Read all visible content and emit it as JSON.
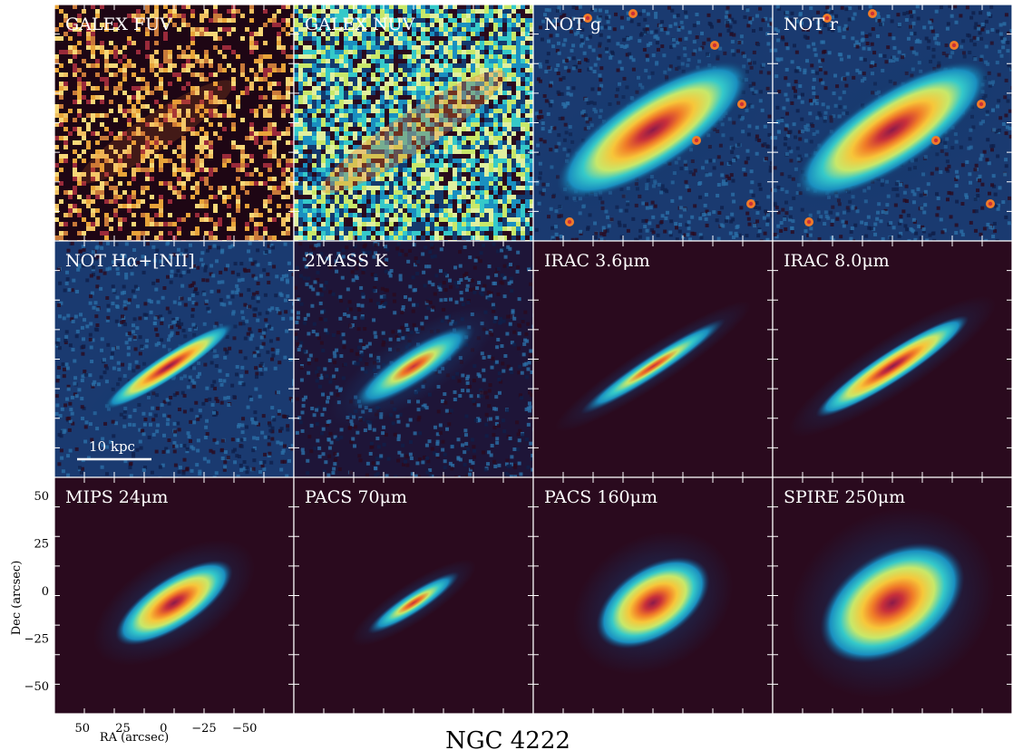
{
  "figure": {
    "title": "NGC 4222",
    "colors": {
      "background": "#2a0a1e",
      "colormap": [
        "#2a0a1e",
        "#143a6e",
        "#1a8fc0",
        "#35c9c9",
        "#c8e86a",
        "#f7c63a",
        "#f07b28",
        "#c9303a",
        "#8c1a4a"
      ]
    },
    "scale_bar": {
      "label": "10 kpc"
    },
    "axes": {
      "xlabel": "RA (arcsec)",
      "ylabel": "Dec (arcsec)",
      "x_ticks": [
        "50",
        "25",
        "0",
        "−25",
        "−50"
      ],
      "y_ticks": [
        "50",
        "25",
        "0",
        "−25",
        "−50"
      ]
    },
    "panels": [
      {
        "label": "GALEX FUV",
        "kind": "noise-sparse",
        "intensity": 0.25
      },
      {
        "label": "GALEX NUV",
        "kind": "noise-dense",
        "intensity": 0.5
      },
      {
        "label": "NOT g",
        "kind": "optical",
        "intensity": 0.9
      },
      {
        "label": "NOT r",
        "kind": "optical",
        "intensity": 0.95
      },
      {
        "label": "NOT Hα+[NII]",
        "kind": "halpha",
        "intensity": 0.8
      },
      {
        "label": "2MASS K",
        "kind": "nir-noisy",
        "intensity": 0.6
      },
      {
        "label": "IRAC 3.6μm",
        "kind": "thin",
        "intensity": 0.8
      },
      {
        "label": "IRAC 8.0μm",
        "kind": "thin-wide",
        "intensity": 0.85
      },
      {
        "label": "MIPS 24μm",
        "kind": "compact",
        "intensity": 0.9
      },
      {
        "label": "PACS 70μm",
        "kind": "compact-small",
        "intensity": 0.85
      },
      {
        "label": "PACS 160μm",
        "kind": "blob",
        "intensity": 0.9
      },
      {
        "label": "SPIRE 250μm",
        "kind": "blob-big",
        "intensity": 0.95
      }
    ]
  }
}
